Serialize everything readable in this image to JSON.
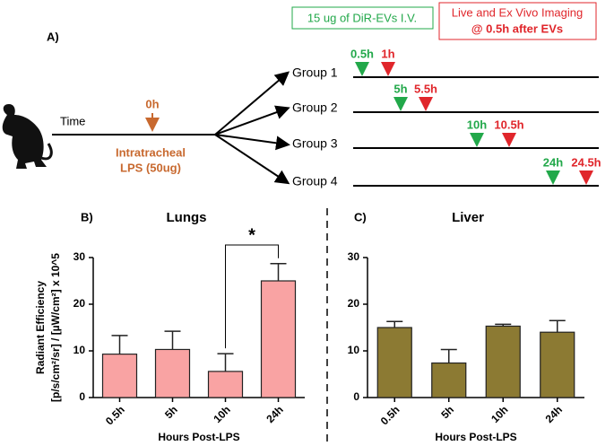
{
  "diagram": {
    "panel_label": "A)",
    "legend": {
      "injection": "15 ug of DiR-EVs I.V.",
      "imaging": [
        "Live and Ex Vivo Imaging",
        "@ 0.5h after EVs"
      ]
    },
    "timeline": {
      "label": "Time",
      "start": "0h",
      "treatment": [
        "Intratracheal",
        "LPS (50ug)"
      ]
    },
    "groups": [
      {
        "name": "Group 1",
        "injection": "0.5h",
        "imaging": "1h"
      },
      {
        "name": "Group 2",
        "injection": "5h",
        "imaging": "5.5h"
      },
      {
        "name": "Group 3",
        "injection": "10h",
        "imaging": "10.5h"
      },
      {
        "name": "Group 4",
        "injection": "24h",
        "imaging": "24.5h"
      }
    ]
  },
  "chart_data": [
    {
      "type": "bar",
      "panel_label": "B)",
      "title": "Lungs",
      "y_label": [
        "Radiant Efficiency",
        "[p/s/cm²/sr] / [µW/cm²] x 10^5"
      ],
      "x_label": "Hours Post-LPS",
      "categories": [
        "0.5h",
        "5h",
        "10h",
        "24h"
      ],
      "values": [
        9.3,
        10.3,
        5.6,
        25.0
      ],
      "errors": [
        4.0,
        3.9,
        3.8,
        3.7
      ],
      "color": "#f9a3a3",
      "ylim": [
        0,
        30
      ],
      "yticks": [
        0,
        10,
        20,
        30
      ],
      "significance": {
        "label": "*",
        "categories": [
          "10h",
          "24h"
        ]
      }
    },
    {
      "type": "bar",
      "panel_label": "C)",
      "title": "Liver",
      "x_label": "Hours Post-LPS",
      "categories": [
        "0.5h",
        "5h",
        "10h",
        "24h"
      ],
      "values": [
        15.0,
        7.4,
        15.3,
        14.0
      ],
      "errors": [
        1.3,
        2.9,
        0.4,
        2.5
      ],
      "color": "#8c7a33",
      "ylim": [
        0,
        30
      ],
      "yticks": [
        0,
        10,
        20,
        30
      ]
    }
  ]
}
